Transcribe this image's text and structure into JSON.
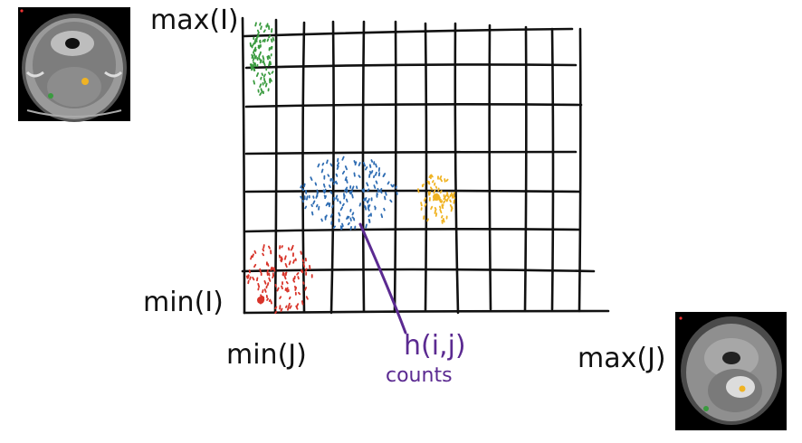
{
  "axis_labels": {
    "y_max": "max(I)",
    "y_min": "min(I)",
    "x_min": "min(J)",
    "x_max": "max(J)"
  },
  "annotation": {
    "formula": "h(i,j)",
    "caption": "counts"
  },
  "colors": {
    "ink": "#111111",
    "annotation": "#5b2a91",
    "green": "#3a9b3f",
    "blue": "#2f6db3",
    "orange": "#f0b323",
    "red": "#d8342a",
    "ct_gray": "#7a7a7a",
    "mr_gray": "#8f8f8f"
  },
  "thumbnails": {
    "top_left": "ct-axial-head-scan",
    "bottom_right": "mr-axial-head-scan"
  },
  "clusters": [
    {
      "name": "green-cluster",
      "color_key": "green"
    },
    {
      "name": "blue-cluster",
      "color_key": "blue"
    },
    {
      "name": "orange-cluster",
      "color_key": "orange"
    },
    {
      "name": "red-cluster",
      "color_key": "red"
    }
  ]
}
